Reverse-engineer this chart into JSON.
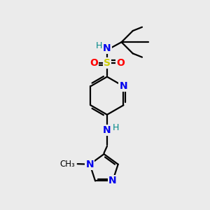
{
  "background_color": "#ebebeb",
  "atom_colors": {
    "C": "#000000",
    "N": "#0000ee",
    "O": "#ff0000",
    "S": "#cccc00",
    "H": "#008888"
  },
  "figsize": [
    3.0,
    3.0
  ],
  "dpi": 100
}
